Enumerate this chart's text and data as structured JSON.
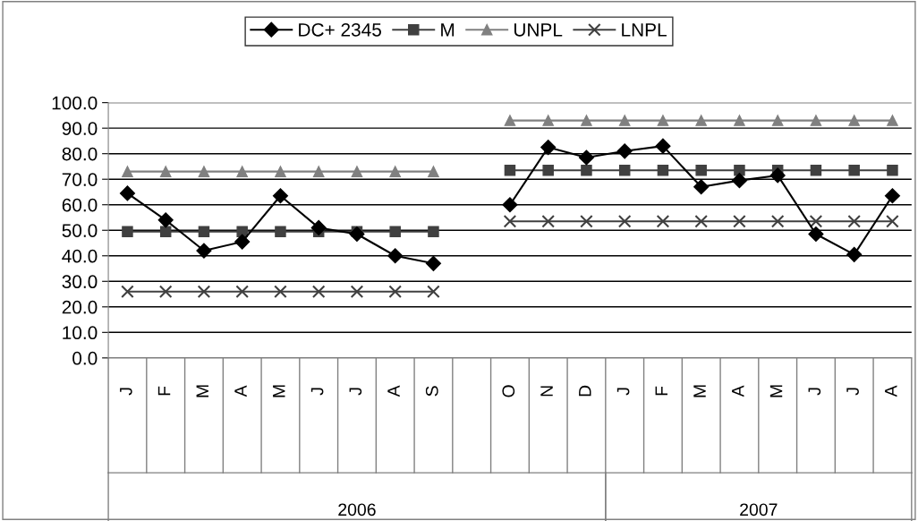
{
  "chart_data": {
    "type": "line",
    "categories": [
      "J",
      "F",
      "M",
      "A",
      "M",
      "J",
      "J",
      "A",
      "S",
      null,
      "O",
      "N",
      "D",
      "J",
      "F",
      "M",
      "A",
      "M",
      "J",
      "J",
      "A"
    ],
    "series": [
      {
        "name": "DC+ 2345",
        "color": "#000000",
        "marker": "diamond",
        "values": [
          64.5,
          54,
          42,
          45.5,
          63.5,
          51,
          48.5,
          40,
          37,
          null,
          60,
          82.5,
          78.5,
          81,
          83,
          67,
          69.5,
          71.5,
          48.5,
          40.5,
          63.5
        ]
      },
      {
        "name": "M",
        "color": "#404040",
        "marker": "square",
        "values": [
          49.5,
          49.5,
          49.5,
          49.5,
          49.5,
          49.5,
          49.5,
          49.5,
          49.5,
          null,
          73.5,
          73.5,
          73.5,
          73.5,
          73.5,
          73.5,
          73.5,
          73.5,
          73.5,
          73.5,
          73.5
        ]
      },
      {
        "name": "UNPL",
        "color": "#808080",
        "marker": "triangle",
        "values": [
          73,
          73,
          73,
          73,
          73,
          73,
          73,
          73,
          73,
          null,
          93,
          93,
          93,
          93,
          93,
          93,
          93,
          93,
          93,
          93,
          93
        ]
      },
      {
        "name": "LNPL",
        "color": "#404040",
        "marker": "cross",
        "values": [
          26,
          26,
          26,
          26,
          26,
          26,
          26,
          26,
          26,
          null,
          53.5,
          53.5,
          53.5,
          53.5,
          53.5,
          53.5,
          53.5,
          53.5,
          53.5,
          53.5,
          53.5
        ]
      }
    ],
    "ylim": [
      0,
      100
    ],
    "yticks": [
      {
        "value": 0,
        "label": "0.0"
      },
      {
        "value": 10,
        "label": "10.0"
      },
      {
        "value": 20,
        "label": "20.0"
      },
      {
        "value": 30,
        "label": "30.0"
      },
      {
        "value": 40,
        "label": "40.0"
      },
      {
        "value": 50,
        "label": "50.0"
      },
      {
        "value": 60,
        "label": "60.0"
      },
      {
        "value": 70,
        "label": "70.0"
      },
      {
        "value": 80,
        "label": "80.0"
      },
      {
        "value": 90,
        "label": "90.0"
      },
      {
        "value": 100,
        "label": "100.0"
      }
    ],
    "grid": "y",
    "legend": "top",
    "line_style": "solid",
    "annotations": [
      "2006",
      "2007"
    ]
  }
}
